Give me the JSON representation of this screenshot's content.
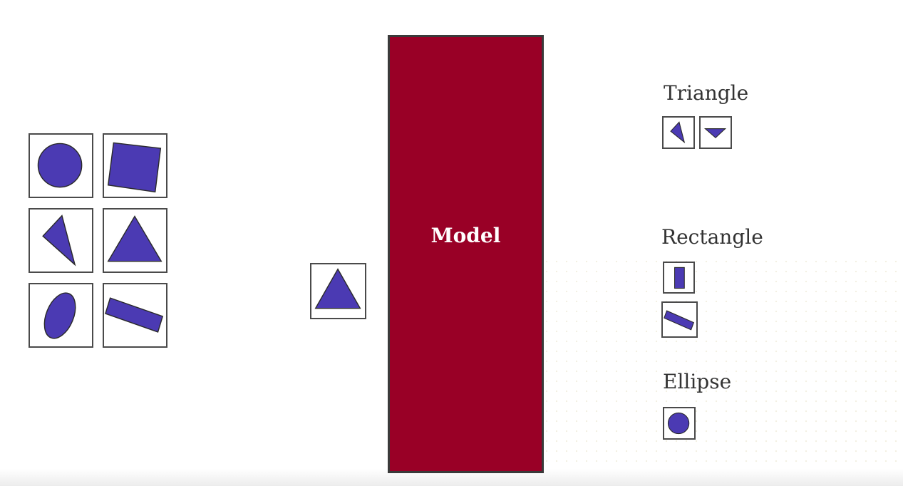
{
  "model": {
    "label": "Model"
  },
  "classes": {
    "triangle": {
      "label": "Triangle"
    },
    "rectangle": {
      "label": "Rectangle"
    },
    "ellipse": {
      "label": "Ellipse"
    }
  },
  "colors": {
    "shape_fill": "#4b3ab3",
    "model_fill": "#990026",
    "tile_border": "#4a4a4a"
  }
}
